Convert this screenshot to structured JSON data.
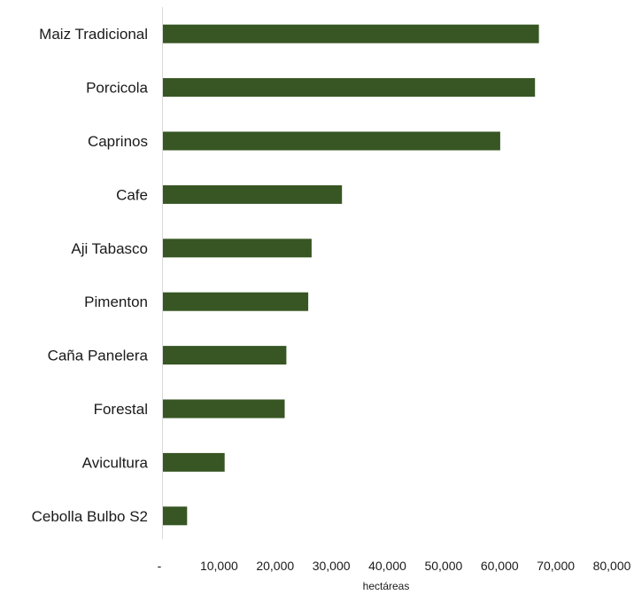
{
  "chart_data": {
    "type": "bar",
    "orientation": "horizontal",
    "categories": [
      "Maiz Tradicional",
      "Porcicola",
      "Caprinos",
      "Cafe",
      "Aji Tabasco",
      "Pimenton",
      "Caña Panelera",
      "Forestal",
      "Avicultura",
      "Cebolla Bulbo S2"
    ],
    "values": [
      67000,
      66300,
      60100,
      31900,
      26500,
      25900,
      22000,
      21700,
      11000,
      4300
    ],
    "xlabel": "hectáreas",
    "xlim": [
      0,
      80000
    ],
    "xticks": [
      0,
      10000,
      20000,
      30000,
      40000,
      50000,
      60000,
      70000,
      80000
    ],
    "xtick_labels": [
      "-",
      "10,000",
      "20,000",
      "30,000",
      "40,000",
      "50,000",
      "60,000",
      "70,000",
      "80,000"
    ],
    "bar_color": "#375623",
    "axis_color": "#d9d9d9",
    "grid": false,
    "legend": "none"
  }
}
